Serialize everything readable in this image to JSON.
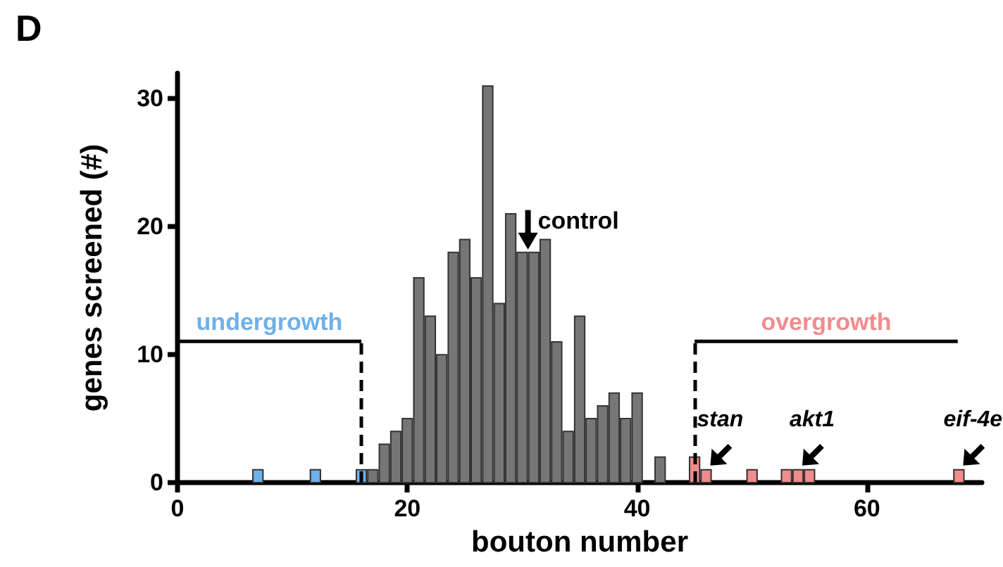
{
  "chart_data": {
    "type": "histogram",
    "title": "D",
    "xlabel": "bouton number",
    "ylabel": "genes screened (#)",
    "bins": [
      6.5,
      7.5,
      8.5,
      9.5,
      10.5,
      11.5,
      12.5,
      13.5,
      14.5,
      15.5,
      16.5,
      17.5,
      18.5,
      19.5,
      20.5,
      21.5,
      22.5,
      23.5,
      24.5,
      25.5,
      26.5,
      27.5,
      28.5,
      29.5,
      30.5,
      31.5,
      32.5,
      33.5,
      34.5,
      35.5,
      36.5,
      37.5,
      38.5,
      39.5,
      40.5,
      41.5,
      42.5,
      43.5,
      44.5,
      45.5,
      46.5,
      47.5,
      48.5,
      49.5,
      50.5,
      51.5,
      52.5,
      53.5,
      54.5,
      55.5,
      56.5,
      57.5,
      58.5,
      59.5,
      60.5,
      61.5,
      62.5,
      63.5,
      64.5,
      65.5,
      66.5,
      67.5,
      68.5
    ],
    "values": [
      1,
      0,
      0,
      0,
      0,
      1,
      0,
      0,
      0,
      1,
      1,
      3,
      4,
      5,
      16,
      13,
      10,
      18,
      19,
      16,
      31,
      14,
      21,
      18,
      18,
      19,
      11,
      4,
      13,
      5,
      6,
      7,
      5,
      7,
      0,
      2,
      0,
      0,
      2,
      1,
      0,
      0,
      0,
      1,
      0,
      0,
      1,
      1,
      1,
      0,
      0,
      0,
      0,
      0,
      0,
      0,
      0,
      0,
      0,
      0,
      0,
      1
    ],
    "colors": [
      "#6fb0e8",
      "#6fb0e8",
      "#6fb0e8",
      "#6fb0e8",
      "#6fb0e8",
      "#6fb0e8",
      "#6fb0e8",
      "#6fb0e8",
      "#6fb0e8",
      "#6fb0e8",
      "#767676",
      "#767676",
      "#767676",
      "#767676",
      "#767676",
      "#767676",
      "#767676",
      "#767676",
      "#767676",
      "#767676",
      "#767676",
      "#767676",
      "#767676",
      "#767676",
      "#767676",
      "#767676",
      "#767676",
      "#767676",
      "#767676",
      "#767676",
      "#767676",
      "#767676",
      "#767676",
      "#767676",
      "#767676",
      "#767676",
      "#767676",
      "#767676",
      "#f28b8b",
      "#f28b8b",
      "#f28b8b",
      "#f28b8b",
      "#f28b8b",
      "#f28b8b",
      "#f28b8b",
      "#f28b8b",
      "#f28b8b",
      "#f28b8b",
      "#f28b8b",
      "#f28b8b",
      "#f28b8b",
      "#f28b8b",
      "#f28b8b",
      "#f28b8b",
      "#f28b8b",
      "#f28b8b",
      "#f28b8b",
      "#f28b8b",
      "#f28b8b",
      "#f28b8b",
      "#f28b8b",
      "#f28b8b"
    ],
    "xlim": [
      0,
      70
    ],
    "xticks": [
      0,
      20,
      40,
      60
    ],
    "ylim": [
      0,
      32
    ],
    "yticks": [
      0,
      10,
      20,
      30
    ],
    "grid": false,
    "ref_lines": [
      {
        "axis": "x",
        "value": 16,
        "label": "undergrowth",
        "color": "#000000",
        "line_style": "dashed"
      },
      {
        "axis": "x",
        "value": 45,
        "label": "overgrowth",
        "color": "#000000",
        "line_style": "dashed"
      }
    ],
    "annotations": [
      {
        "text": "control",
        "x": 30.5,
        "y": 18
      },
      {
        "text": "stan",
        "x": 46,
        "y": 1
      },
      {
        "text": "akt1",
        "x": 54,
        "y": 1
      },
      {
        "text": "eif-4e",
        "x": 68,
        "y": 1
      }
    ]
  }
}
